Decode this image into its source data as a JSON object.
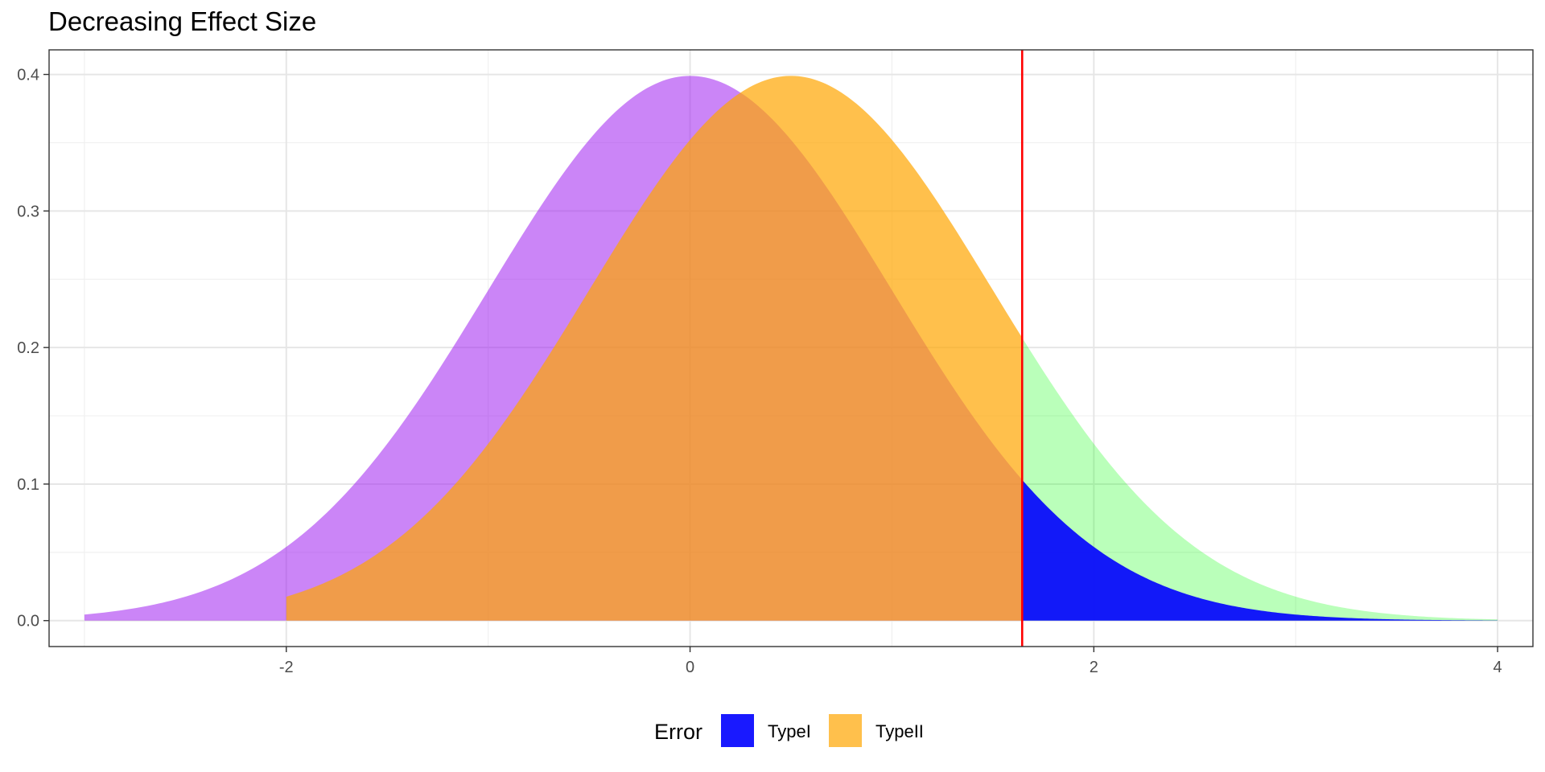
{
  "chart_data": {
    "type": "area",
    "title": "Decreasing Effect Size",
    "xlabel": "",
    "ylabel": "",
    "xlim": [
      -3.175,
      4.175
    ],
    "ylim": [
      -0.019,
      0.418
    ],
    "x_ticks": [
      -2,
      0,
      2,
      4
    ],
    "x_tick_labels": [
      "-2",
      "0",
      "2",
      "4"
    ],
    "y_ticks": [
      0.0,
      0.1,
      0.2,
      0.3,
      0.4
    ],
    "y_tick_labels": [
      "0.0",
      "0.1",
      "0.2",
      "0.3",
      "0.4"
    ],
    "grid": true,
    "critical_value": 1.645,
    "critical_line_color": "#FF0000",
    "series": [
      {
        "role": "null-distribution",
        "distribution": "normal",
        "mean": 0,
        "sd": 1,
        "x_range": [
          -3,
          1.645
        ],
        "color": "#A020F0",
        "opacity": 0.55
      },
      {
        "role": "alternative-distribution",
        "distribution": "normal",
        "mean": 0.5,
        "sd": 1,
        "x_range": [
          -2,
          1.645
        ],
        "color": "#FFA500",
        "opacity": 0.7
      },
      {
        "role": "alternative-tail",
        "distribution": "normal",
        "mean": 0.5,
        "sd": 1,
        "x_range": [
          1.645,
          4
        ],
        "color": "#00FF00",
        "opacity": 0.27
      },
      {
        "name": "TypeI",
        "role": "type-i-region",
        "distribution": "normal",
        "mean": 0,
        "sd": 1,
        "x_range": [
          1.645,
          4
        ],
        "color": "#0000FF",
        "opacity": 0.9
      }
    ],
    "legend": {
      "title": "Error",
      "position": "bottom",
      "items": [
        {
          "label": "TypeI",
          "color": "#0000FF",
          "opacity": 0.9
        },
        {
          "label": "TypeII",
          "color": "#FFA500",
          "opacity": 0.7
        }
      ]
    }
  }
}
